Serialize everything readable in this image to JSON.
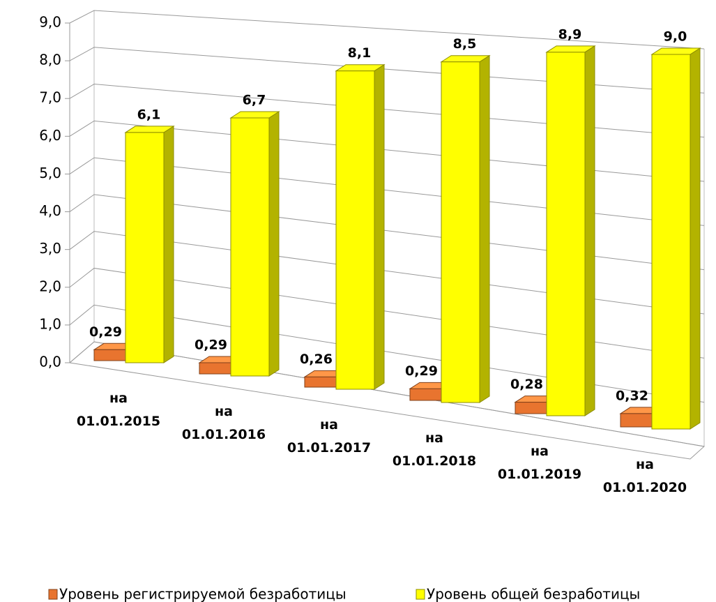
{
  "chart_data": {
    "type": "bar3d",
    "categories": [
      "на 01.01.2015",
      "на 01.01.2016",
      "на 01.01.2017",
      "на 01.01.2018",
      "на 01.01.2019",
      "на 01.01.2020"
    ],
    "series": [
      {
        "name": "Уровень регистрируемой безработицы",
        "color": "#e8742f",
        "values": [
          0.29,
          0.29,
          0.26,
          0.29,
          0.28,
          0.32
        ],
        "value_labels": [
          "0,29",
          "0,29",
          "0,26",
          "0,29",
          "0,28",
          "0,32"
        ]
      },
      {
        "name": "Уровень общей безработицы",
        "color": "#ffff00",
        "values": [
          6.1,
          6.7,
          8.1,
          8.5,
          8.9,
          9.0
        ],
        "value_labels": [
          "6,1",
          "6,7",
          "8,1",
          "8,5",
          "8,9",
          "9,0"
        ]
      }
    ],
    "ylim": [
      0,
      9
    ],
    "yticks": [
      {
        "value": 0,
        "label": "0,0"
      },
      {
        "value": 1,
        "label": "1,0"
      },
      {
        "value": 2,
        "label": "2,0"
      },
      {
        "value": 3,
        "label": "3,0"
      },
      {
        "value": 4,
        "label": "4,0"
      },
      {
        "value": 5,
        "label": "5,0"
      },
      {
        "value": 6,
        "label": "6,0"
      },
      {
        "value": 7,
        "label": "7,0"
      },
      {
        "value": 8,
        "label": "8,0"
      },
      {
        "value": 9,
        "label": "9,0"
      }
    ],
    "grid": true,
    "legend": "bottom"
  }
}
